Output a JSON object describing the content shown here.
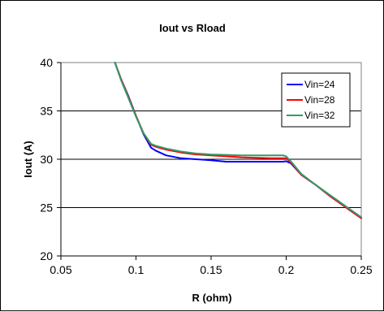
{
  "chart_data": {
    "type": "line",
    "title": "Iout vs Rload",
    "xlabel": "R (ohm)",
    "ylabel": "Iout (A)",
    "xlim": [
      0.05,
      0.25
    ],
    "ylim": [
      20,
      40
    ],
    "xticks": [
      0.05,
      0.1,
      0.15,
      0.2,
      0.25
    ],
    "yticks": [
      20,
      25,
      30,
      35,
      40
    ],
    "xtick_labels": [
      "0.05",
      "0.1",
      "0.15",
      "0.2",
      "0.25"
    ],
    "ytick_labels": [
      "20",
      "25",
      "30",
      "35",
      "40"
    ],
    "grid": "horizontal",
    "legend_position": "top-right",
    "series": [
      {
        "name": "Vin=24",
        "color": "#0000ff",
        "x": [
          0.086,
          0.09,
          0.095,
          0.1,
          0.105,
          0.11,
          0.113,
          0.12,
          0.13,
          0.14,
          0.15,
          0.16,
          0.17,
          0.18,
          0.19,
          0.198,
          0.2,
          0.203,
          0.21,
          0.22,
          0.23,
          0.24,
          0.25
        ],
        "y": [
          40,
          38.3,
          36.5,
          34.5,
          32.6,
          31.2,
          30.9,
          30.4,
          30.1,
          30.0,
          29.9,
          29.75,
          29.75,
          29.75,
          29.75,
          29.75,
          29.8,
          29.6,
          28.4,
          27.3,
          26.1,
          25.0,
          23.9
        ]
      },
      {
        "name": "Vin=28",
        "color": "#ff0000",
        "x": [
          0.086,
          0.09,
          0.095,
          0.1,
          0.105,
          0.11,
          0.113,
          0.12,
          0.13,
          0.14,
          0.15,
          0.16,
          0.17,
          0.18,
          0.19,
          0.198,
          0.2,
          0.203,
          0.21,
          0.22,
          0.23,
          0.24,
          0.25
        ],
        "y": [
          40,
          38.3,
          36.4,
          34.5,
          32.7,
          31.5,
          31.3,
          31.0,
          30.7,
          30.5,
          30.4,
          30.3,
          30.2,
          30.15,
          30.1,
          30.1,
          30.1,
          29.7,
          28.4,
          27.3,
          26.1,
          25.0,
          23.9
        ]
      },
      {
        "name": "Vin=32",
        "color": "#339966",
        "x": [
          0.086,
          0.09,
          0.095,
          0.1,
          0.105,
          0.11,
          0.113,
          0.12,
          0.13,
          0.14,
          0.15,
          0.16,
          0.17,
          0.18,
          0.19,
          0.198,
          0.2,
          0.203,
          0.21,
          0.22,
          0.23,
          0.24,
          0.25
        ],
        "y": [
          40,
          38.2,
          36.3,
          34.4,
          32.7,
          31.6,
          31.4,
          31.1,
          30.8,
          30.6,
          30.5,
          30.45,
          30.4,
          30.4,
          30.4,
          30.4,
          30.3,
          29.8,
          28.5,
          27.3,
          26.2,
          25.1,
          24.0
        ]
      }
    ]
  }
}
